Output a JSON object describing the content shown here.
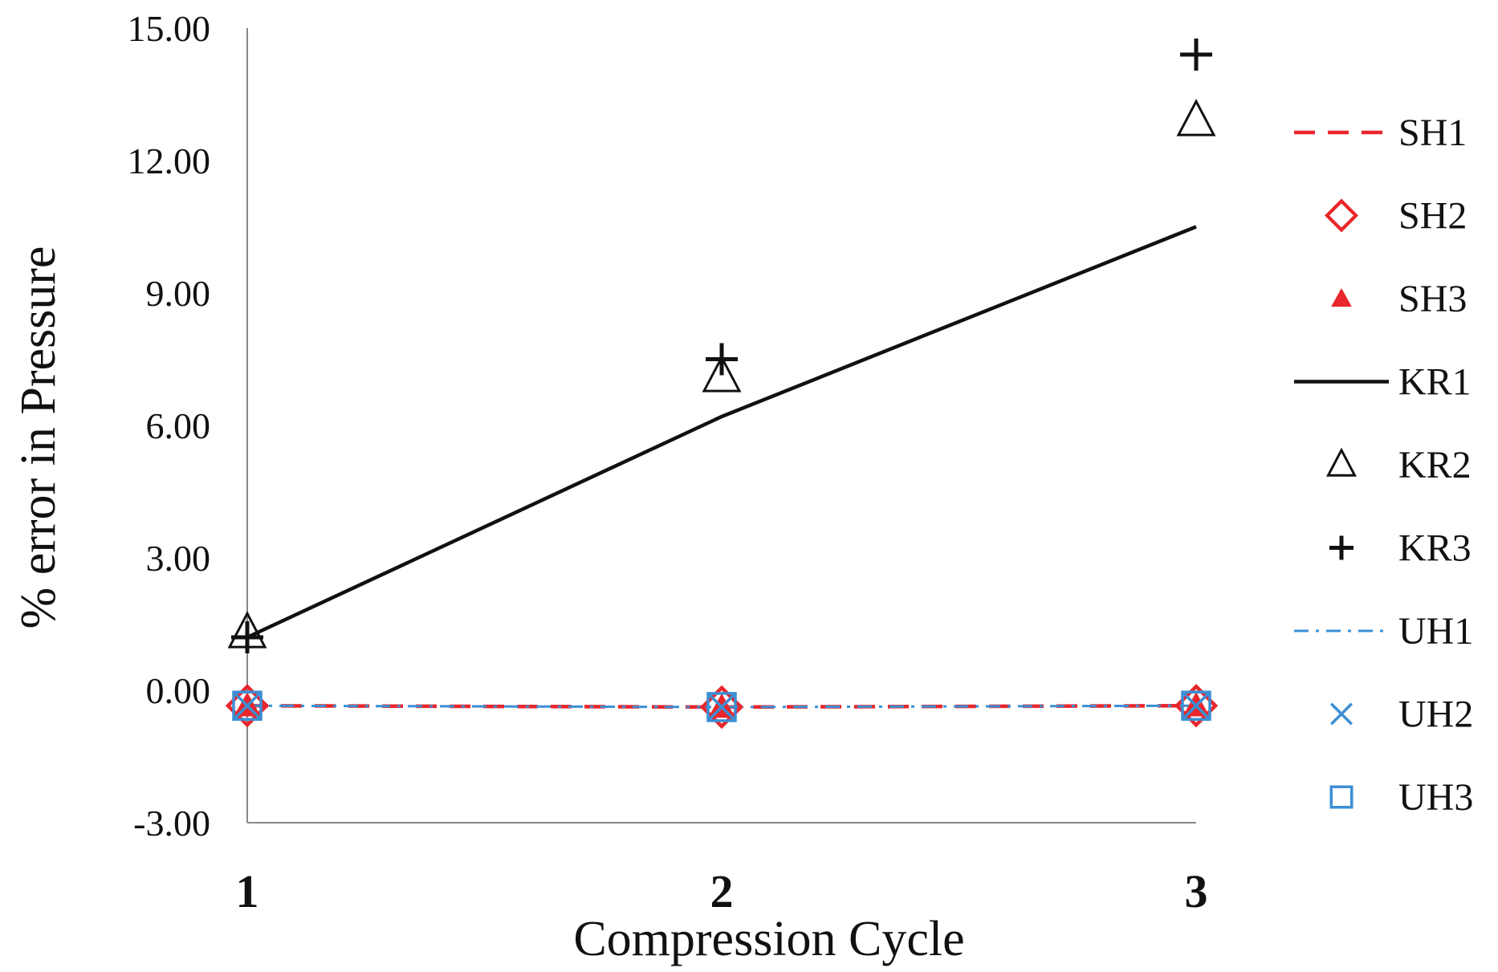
{
  "chart_data": {
    "type": "line",
    "title": "",
    "xlabel": "Compression Cycle",
    "ylabel": "% error in Pressure",
    "x": [
      1,
      2,
      3
    ],
    "x_tick_labels": [
      "1",
      "2",
      "3"
    ],
    "y_tick_labels": [
      "-3.00",
      "0.00",
      "3.00",
      "6.00",
      "9.00",
      "12.00",
      "15.00"
    ],
    "ylim": [
      -3,
      15
    ],
    "grid": false,
    "legend_position": "right",
    "series": [
      {
        "name": "SH1",
        "values": [
          -0.35,
          -0.38,
          -0.35
        ],
        "style": "dashed-line",
        "color": "#e8262b"
      },
      {
        "name": "SH2",
        "values": [
          -0.35,
          -0.38,
          -0.35
        ],
        "style": "diamond",
        "color": "#e8262b"
      },
      {
        "name": "SH3",
        "values": [
          -0.35,
          -0.38,
          -0.35
        ],
        "style": "filled-triangle",
        "color": "#e8262b"
      },
      {
        "name": "KR1",
        "values": [
          1.2,
          6.2,
          10.5
        ],
        "style": "solid-line",
        "color": "#111111"
      },
      {
        "name": "KR2",
        "values": [
          1.3,
          7.1,
          12.9
        ],
        "style": "triangle",
        "color": "#111111"
      },
      {
        "name": "KR3",
        "values": [
          1.2,
          7.5,
          14.4
        ],
        "style": "plus",
        "color": "#111111"
      },
      {
        "name": "UH1",
        "values": [
          -0.35,
          -0.38,
          -0.35
        ],
        "style": "dashdot-line",
        "color": "#3b8fd4"
      },
      {
        "name": "UH2",
        "values": [
          -0.35,
          -0.38,
          -0.35
        ],
        "style": "cross",
        "color": "#3b8fd4"
      },
      {
        "name": "UH3",
        "values": [
          -0.35,
          -0.38,
          -0.35
        ],
        "style": "square",
        "color": "#3b8fd4"
      }
    ]
  }
}
